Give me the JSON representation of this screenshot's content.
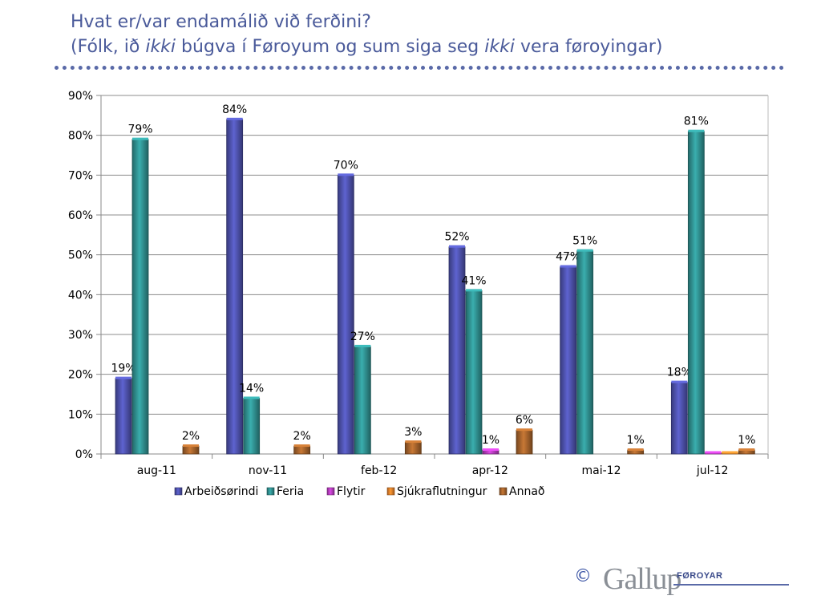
{
  "title": {
    "line1": "Hvat er/var endamálið við ferðini?",
    "line2_part1": "(Fólk, ið ",
    "line2_italic1": "ikki",
    "line2_part2": " búgva í Føroyum og sum siga seg ",
    "line2_italic2": "ikki",
    "line2_part3": " vera føroyingar)"
  },
  "logo": {
    "copyright": "©",
    "brand": "Gallup",
    "sub": "FØROYAR"
  },
  "chart_data": {
    "type": "bar",
    "categories": [
      "aug-11",
      "nov-11",
      "feb-12",
      "apr-12",
      "mai-12",
      "jul-12"
    ],
    "series": [
      {
        "name": "Arbeiðsørindi",
        "color": "#4b4fa6",
        "values": [
          19,
          84,
          70,
          52,
          47,
          18
        ],
        "labels": [
          "19%",
          "84%",
          "70%",
          "52%",
          "47%",
          "18%"
        ]
      },
      {
        "name": "Feria",
        "color": "#2e8b8b",
        "values": [
          79,
          14,
          27,
          41,
          51,
          81
        ],
        "labels": [
          "79%",
          "14%",
          "27%",
          "41%",
          "51%",
          "81%"
        ]
      },
      {
        "name": "Flytir",
        "color": "#b03ab8",
        "values": [
          0,
          0,
          0,
          1,
          0,
          0.3
        ],
        "labels": [
          "",
          "",
          "",
          "1%",
          "",
          ""
        ]
      },
      {
        "name": "Sjúkraflutningur",
        "color": "#e07b28",
        "values": [
          0,
          0,
          0,
          0,
          0,
          0.3
        ],
        "labels": [
          "",
          "",
          "",
          "",
          "",
          ""
        ]
      },
      {
        "name": "Annað",
        "color": "#a0602a",
        "values": [
          2,
          2,
          3,
          6,
          1,
          1
        ],
        "labels": [
          "2%",
          "2%",
          "3%",
          "6%",
          "1%",
          "1%"
        ]
      }
    ],
    "ylim": [
      0,
      90
    ],
    "yticks": [
      "0%",
      "10%",
      "20%",
      "30%",
      "40%",
      "50%",
      "60%",
      "70%",
      "80%",
      "90%"
    ],
    "grid": true,
    "legend_position": "bottom"
  }
}
